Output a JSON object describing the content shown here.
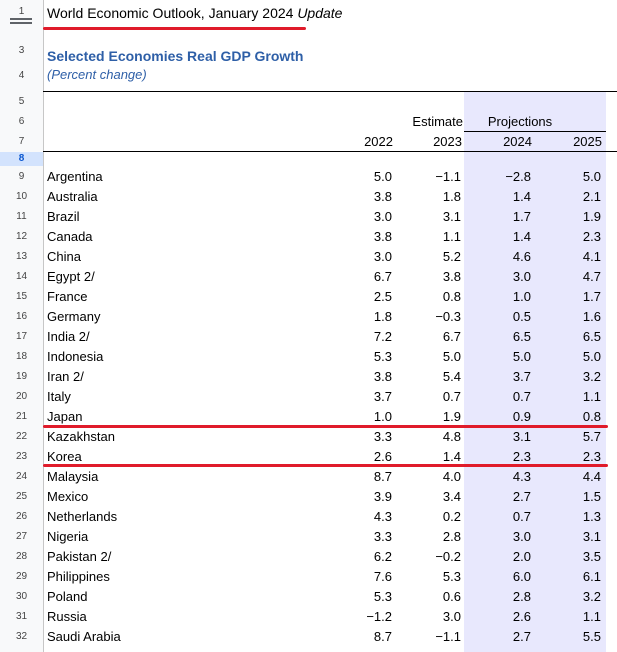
{
  "header": {
    "title": "World Economic Outlook, January 2024",
    "title_italic": "Update",
    "subtitle": "Selected Economies Real GDP Growth",
    "subnote": "(Percent change)",
    "estimate_label": "Estimate",
    "projections_label": "Projections",
    "years": [
      "2022",
      "2023",
      "2024",
      "2025"
    ]
  },
  "row_numbers": [
    "1",
    "3",
    "4",
    "5",
    "6",
    "7",
    "8"
  ],
  "rows": [
    {
      "rn": "9",
      "name": "Argentina",
      "v": [
        "5.0",
        "−1.1",
        "−2.8",
        "5.0"
      ]
    },
    {
      "rn": "10",
      "name": "Australia",
      "v": [
        "3.8",
        "1.8",
        "1.4",
        "2.1"
      ]
    },
    {
      "rn": "11",
      "name": "Brazil",
      "v": [
        "3.0",
        "3.1",
        "1.7",
        "1.9"
      ]
    },
    {
      "rn": "12",
      "name": "Canada",
      "v": [
        "3.8",
        "1.1",
        "1.4",
        "2.3"
      ]
    },
    {
      "rn": "13",
      "name": "China",
      "v": [
        "3.0",
        "5.2",
        "4.6",
        "4.1"
      ]
    },
    {
      "rn": "14",
      "name": "Egypt 2/",
      "v": [
        "6.7",
        "3.8",
        "3.0",
        "4.7"
      ]
    },
    {
      "rn": "15",
      "name": "France",
      "v": [
        "2.5",
        "0.8",
        "1.0",
        "1.7"
      ]
    },
    {
      "rn": "16",
      "name": "Germany",
      "v": [
        "1.8",
        "−0.3",
        "0.5",
        "1.6"
      ]
    },
    {
      "rn": "17",
      "name": "India 2/",
      "v": [
        "7.2",
        "6.7",
        "6.5",
        "6.5"
      ]
    },
    {
      "rn": "18",
      "name": "Indonesia",
      "v": [
        "5.3",
        "5.0",
        "5.0",
        "5.0"
      ]
    },
    {
      "rn": "19",
      "name": "Iran 2/",
      "v": [
        "3.8",
        "5.4",
        "3.7",
        "3.2"
      ]
    },
    {
      "rn": "20",
      "name": "Italy",
      "v": [
        "3.7",
        "0.7",
        "0.7",
        "1.1"
      ]
    },
    {
      "rn": "21",
      "name": "Japan",
      "v": [
        "1.0",
        "1.9",
        "0.9",
        "0.8"
      ]
    },
    {
      "rn": "22",
      "name": "Kazakhstan",
      "v": [
        "3.3",
        "4.8",
        "3.1",
        "5.7"
      ]
    },
    {
      "rn": "23",
      "name": "Korea",
      "v": [
        "2.6",
        "1.4",
        "2.3",
        "2.3"
      ]
    },
    {
      "rn": "24",
      "name": "Malaysia",
      "v": [
        "8.7",
        "4.0",
        "4.3",
        "4.4"
      ]
    },
    {
      "rn": "25",
      "name": "Mexico",
      "v": [
        "3.9",
        "3.4",
        "2.7",
        "1.5"
      ]
    },
    {
      "rn": "26",
      "name": "Netherlands",
      "v": [
        "4.3",
        "0.2",
        "0.7",
        "1.3"
      ]
    },
    {
      "rn": "27",
      "name": "Nigeria",
      "v": [
        "3.3",
        "2.8",
        "3.0",
        "3.1"
      ]
    },
    {
      "rn": "28",
      "name": "Pakistan 2/",
      "v": [
        "6.2",
        "−0.2",
        "2.0",
        "3.5"
      ]
    },
    {
      "rn": "29",
      "name": "Philippines",
      "v": [
        "7.6",
        "5.3",
        "6.0",
        "6.1"
      ]
    },
    {
      "rn": "30",
      "name": "Poland",
      "v": [
        "5.3",
        "0.6",
        "2.8",
        "3.2"
      ]
    },
    {
      "rn": "31",
      "name": "Russia",
      "v": [
        "−1.2",
        "3.0",
        "2.6",
        "1.1"
      ]
    },
    {
      "rn": "32",
      "name": "Saudi Arabia",
      "v": [
        "8.7",
        "−1.1",
        "2.7",
        "5.5"
      ]
    }
  ],
  "colors": {
    "accent": "#2e5fa7",
    "highlight": "#e01b2a",
    "projection_bg": "#e8e8fd"
  }
}
